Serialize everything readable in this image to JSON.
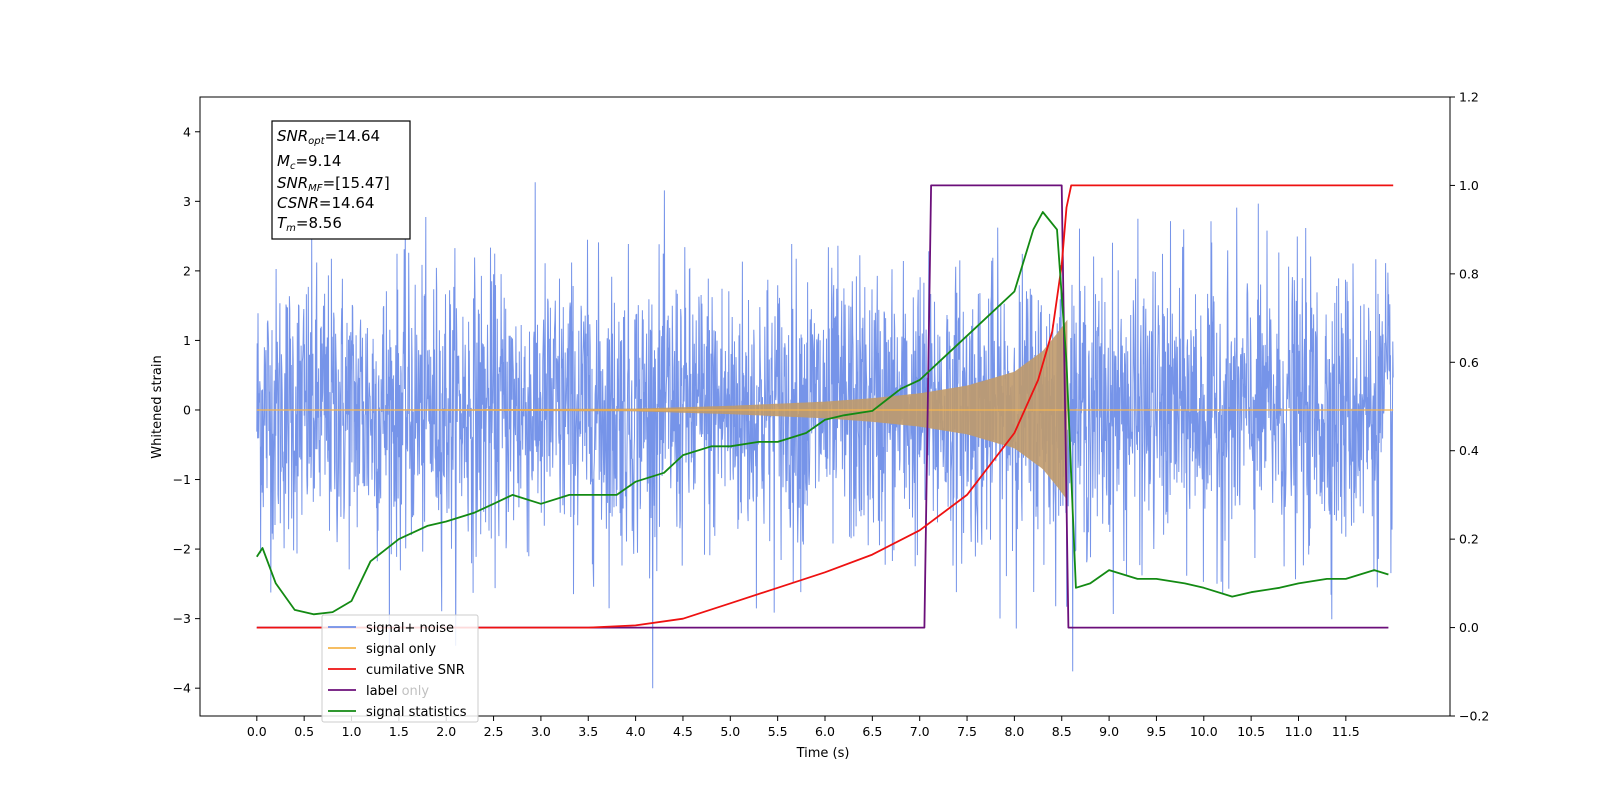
{
  "colors": {
    "signal_noise": "#6f8ee8",
    "signal_only": "#f5b54d",
    "signal_band": "#c09a6b",
    "cumulative_snr": "#ee1111",
    "label": "#6b0f7a",
    "statistics": "#138a13"
  },
  "chart_data": {
    "type": "line",
    "xlabel": "Time (s)",
    "ylabel_left": "Whitened strain",
    "ylabel_right": "",
    "xlim": [
      -0.6,
      12.6
    ],
    "ylim_left": [
      -4.4,
      4.5
    ],
    "ylim_right": [
      -0.2,
      1.2
    ],
    "x_ticks": [
      "0.0",
      "0.5",
      "1.0",
      "1.5",
      "2.0",
      "2.5",
      "3.0",
      "3.5",
      "4.0",
      "4.5",
      "5.0",
      "5.5",
      "6.0",
      "6.5",
      "7.0",
      "7.5",
      "8.0",
      "8.5",
      "9.0",
      "9.5",
      "10.0",
      "10.5",
      "11.0",
      "11.5"
    ],
    "y_ticks_left": [
      "-4",
      "-3",
      "-2",
      "-1",
      "0",
      "1",
      "2",
      "3",
      "4"
    ],
    "y_ticks_right": [
      "-0.2",
      "0.0",
      "0.2",
      "0.4",
      "0.6",
      "0.8",
      "1.0",
      "1.2"
    ],
    "grid": false,
    "legend_position": "lower-left",
    "series": [
      {
        "name": "signal+ noise",
        "axis": "left",
        "x_range": [
          0.0,
          12.0
        ],
        "amplitude_std": 1.0,
        "approx_range": [
          -4.0,
          4.1
        ]
      },
      {
        "name": "signal only",
        "axis": "left",
        "merger_time": 8.56,
        "envelope": {
          "x": [
            0.0,
            4.0,
            5.0,
            6.0,
            6.5,
            7.0,
            7.5,
            8.0,
            8.3,
            8.45,
            8.56,
            8.6,
            12.0
          ],
          "y": [
            0.0,
            0.02,
            0.06,
            0.12,
            0.17,
            0.24,
            0.35,
            0.55,
            0.85,
            1.1,
            1.3,
            0.0,
            0.0
          ]
        }
      },
      {
        "name": "cumilative SNR",
        "axis": "right",
        "x": [
          0.0,
          3.5,
          4.0,
          4.5,
          5.0,
          5.5,
          6.0,
          6.5,
          7.0,
          7.5,
          8.0,
          8.25,
          8.4,
          8.5,
          8.55,
          8.6,
          12.0
        ],
        "y": [
          0.0,
          0.0,
          0.005,
          0.02,
          0.055,
          0.09,
          0.125,
          0.165,
          0.22,
          0.3,
          0.44,
          0.56,
          0.67,
          0.82,
          0.95,
          1.0,
          1.0
        ]
      },
      {
        "name": "label",
        "axis": "right",
        "x": [
          0.0,
          7.05,
          7.12,
          8.5,
          8.57,
          11.95
        ],
        "y": [
          0.0,
          0.0,
          1.0,
          1.0,
          0.0,
          0.0
        ]
      },
      {
        "name": "signal statistics",
        "axis": "right",
        "x": [
          0.0,
          0.06,
          0.2,
          0.4,
          0.6,
          0.8,
          1.0,
          1.2,
          1.5,
          1.8,
          2.0,
          2.3,
          2.5,
          2.7,
          3.0,
          3.3,
          3.5,
          3.8,
          4.0,
          4.3,
          4.5,
          4.8,
          5.0,
          5.3,
          5.5,
          5.8,
          6.0,
          6.2,
          6.5,
          6.8,
          7.0,
          7.2,
          7.5,
          7.8,
          8.0,
          8.2,
          8.3,
          8.45,
          8.55,
          8.65,
          8.8,
          9.0,
          9.3,
          9.5,
          9.8,
          10.0,
          10.3,
          10.5,
          10.8,
          11.0,
          11.3,
          11.5,
          11.8,
          11.95
        ],
        "y": [
          0.16,
          0.18,
          0.1,
          0.04,
          0.03,
          0.035,
          0.06,
          0.15,
          0.2,
          0.23,
          0.24,
          0.26,
          0.28,
          0.3,
          0.28,
          0.3,
          0.3,
          0.3,
          0.33,
          0.35,
          0.39,
          0.41,
          0.41,
          0.42,
          0.42,
          0.44,
          0.47,
          0.48,
          0.49,
          0.54,
          0.56,
          0.6,
          0.66,
          0.72,
          0.76,
          0.9,
          0.94,
          0.9,
          0.6,
          0.09,
          0.1,
          0.13,
          0.11,
          0.11,
          0.1,
          0.09,
          0.07,
          0.08,
          0.09,
          0.1,
          0.11,
          0.11,
          0.13,
          0.12
        ]
      }
    ],
    "annotation": {
      "snr_opt": {
        "sym": "SNR",
        "sub": "opt",
        "value": "=14.64"
      },
      "mc": {
        "sym": "M",
        "sub": "c",
        "value": "=9.14"
      },
      "snr_mf": {
        "sym": "SNR",
        "sub": "MF",
        "value": "=[15.47]"
      },
      "csnr": {
        "sym": "CSNR",
        "value": "=14.64"
      },
      "tm": {
        "sym": "T",
        "sub": "m",
        "value": "=8.56"
      }
    },
    "legend": {
      "signal_noise": "signal+ noise",
      "signal_only": "signal only",
      "cumulative_snr": "cumilative SNR",
      "label": "label",
      "label_only_hidden": "label only",
      "statistics": "signal statistics"
    }
  }
}
